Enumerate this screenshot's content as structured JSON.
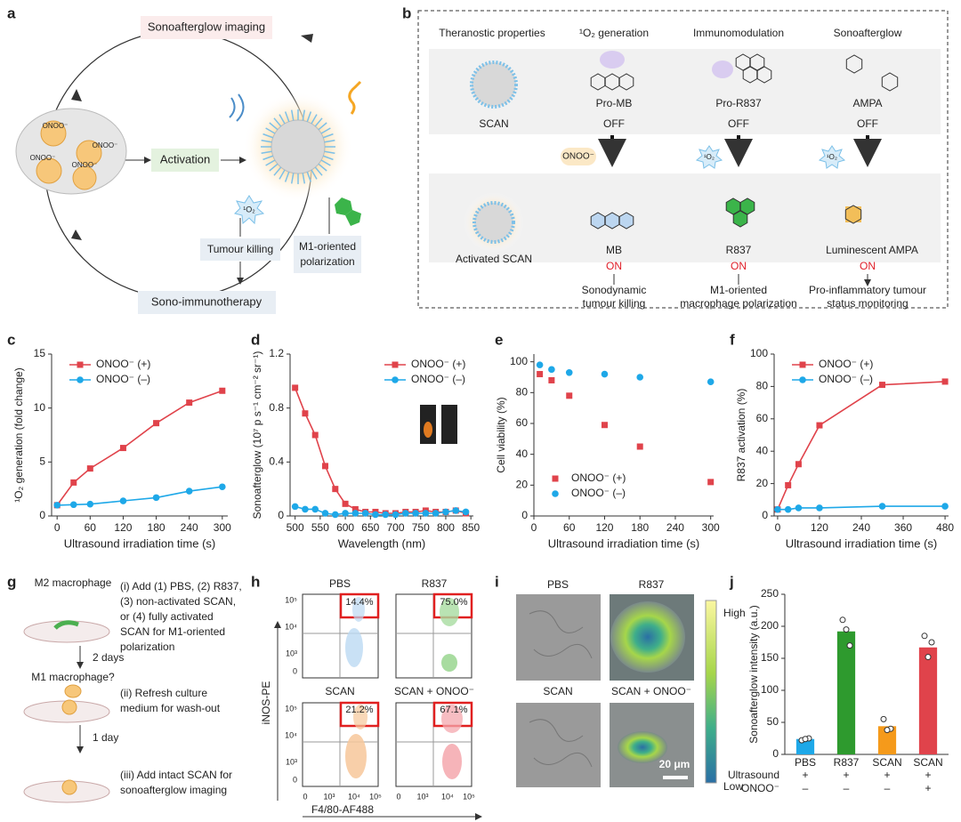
{
  "panel_a": {
    "label": "a",
    "imaging": "Sonoafterglow imaging",
    "activation": "Activation",
    "killing": "Tumour killing",
    "polarization": [
      "M1-oriented",
      "polarization"
    ],
    "therapy": "Sono-immunotherapy",
    "onoo": "ONOO⁻",
    "singlet_oxygen": "¹O₂"
  },
  "panel_b": {
    "label": "b",
    "columns": [
      "Theranostic properties",
      "¹O₂ generation",
      "Immunomodulation",
      "Sonoafterglow"
    ],
    "before": {
      "names": [
        "SCAN",
        "Pro-MB",
        "Pro-R837",
        "AMPA"
      ],
      "states": [
        "OFF",
        "OFF",
        "OFF"
      ]
    },
    "triggers": [
      "ONOO⁻",
      "¹O₂",
      "¹O₂"
    ],
    "after": {
      "names": [
        "Activated SCAN",
        "MB",
        "R837",
        "Luminescent AMPA"
      ],
      "states": [
        "ON",
        "ON",
        "ON"
      ]
    },
    "outcomes": [
      [
        "Sonodynamic",
        "tumour killing"
      ],
      [
        "M1-oriented",
        "macrophage polarization"
      ],
      [
        "Pro-inflammatory tumour",
        "status monitoring"
      ]
    ]
  },
  "panel_g": {
    "label": "g",
    "stages": [
      "M2 macrophage",
      "M1 macrophage?"
    ],
    "intervals": [
      "2 days",
      "1 day"
    ],
    "steps": [
      [
        "(i) Add (1) PBS, (2) R837,",
        "(3) non-activated SCAN,",
        "or (4) fully activated",
        "SCAN for M1-oriented",
        "polarization"
      ],
      [
        "(ii) Refresh culture",
        "medium for wash-out"
      ],
      [
        "(iii) Add intact SCAN for",
        "sonoafterglow imaging"
      ]
    ]
  },
  "panel_h": {
    "label": "h",
    "y_label": "iNOS-PE",
    "x_label": "F4/80-AF488",
    "y_ticks": [
      "10⁵",
      "10⁴",
      "10³",
      "0"
    ],
    "x_ticks": [
      "0",
      "10³",
      "10⁴",
      "10⁵"
    ],
    "plots": [
      {
        "title": "PBS",
        "percent": "14.4%"
      },
      {
        "title": "R837",
        "percent": "75.0%"
      },
      {
        "title": "SCAN",
        "percent": "21.2%"
      },
      {
        "title": "SCAN + ONOO⁻",
        "percent": "67.1%"
      }
    ]
  },
  "panel_i": {
    "label": "i",
    "images": [
      "PBS",
      "R837",
      "SCAN",
      "SCAN + ONOO⁻"
    ],
    "colorbar": [
      "High",
      "Low"
    ],
    "scale_bar": "20 μm"
  },
  "chart_data": [
    {
      "label": "c",
      "type": "line",
      "y_label": "¹O₂ generation (fold change)",
      "x_label": "Ultrasound irradiation time (s)",
      "legend": "upper left",
      "x": [
        0,
        30,
        60,
        120,
        180,
        240,
        300
      ],
      "xlim": [
        -10,
        310
      ],
      "xticks": [
        0,
        60,
        120,
        180,
        240,
        300
      ],
      "ylim": [
        0,
        15
      ],
      "yticks": [
        0,
        5,
        10,
        15
      ],
      "series": [
        {
          "name": "ONOO⁻ (+)",
          "color": "#e0434b",
          "marker": "square",
          "values": [
            1,
            3.1,
            4.4,
            6.3,
            8.6,
            10.5,
            11.6
          ]
        },
        {
          "name": "ONOO⁻ (–)",
          "color": "#1ea8e8",
          "marker": "circle",
          "values": [
            1,
            1.05,
            1.1,
            1.4,
            1.7,
            2.3,
            2.7
          ]
        }
      ]
    },
    {
      "label": "d",
      "type": "line",
      "y_label": "Sonoafterglow (10⁷ p s⁻¹ cm⁻² sr⁻¹)",
      "x_label": "Wavelength (nm)",
      "legend": "upper right",
      "x": [
        500,
        520,
        540,
        560,
        580,
        600,
        620,
        640,
        660,
        680,
        700,
        720,
        740,
        760,
        780,
        800,
        820,
        840
      ],
      "xlim": [
        490,
        855
      ],
      "xticks": [
        500,
        550,
        600,
        650,
        700,
        750,
        800,
        850
      ],
      "ylim": [
        0,
        1.2
      ],
      "yticks": [
        0,
        0.4,
        0.8,
        1.2
      ],
      "series": [
        {
          "name": "ONOO⁻ (+)",
          "color": "#e0434b",
          "marker": "square",
          "values": [
            0.95,
            0.76,
            0.6,
            0.37,
            0.2,
            0.09,
            0.05,
            0.03,
            0.03,
            0.02,
            0.02,
            0.03,
            0.03,
            0.04,
            0.03,
            0.03,
            0.04,
            0.02
          ]
        },
        {
          "name": "ONOO⁻ (–)",
          "color": "#1ea8e8",
          "marker": "circle",
          "values": [
            0.07,
            0.05,
            0.05,
            0.02,
            0.01,
            0.02,
            0.02,
            0.02,
            0.01,
            0.01,
            0.01,
            0.02,
            0.02,
            0.02,
            0.02,
            0.03,
            0.04,
            0.03
          ]
        }
      ]
    },
    {
      "label": "e",
      "type": "scatter",
      "y_label": "Cell viability (%)",
      "x_label": "Ultrasound irradiation time (s)",
      "legend": "lower left",
      "x": [
        10,
        30,
        60,
        120,
        180,
        300
      ],
      "xlim": [
        0,
        305
      ],
      "xticks": [
        0,
        60,
        120,
        180,
        240,
        300
      ],
      "ylim": [
        0,
        105
      ],
      "yticks": [
        0,
        20,
        40,
        60,
        80,
        100
      ],
      "series": [
        {
          "name": "ONOO⁻ (+)",
          "color": "#e0434b",
          "marker": "square",
          "values": [
            92,
            88,
            78,
            59,
            45,
            22
          ]
        },
        {
          "name": "ONOO⁻ (–)",
          "color": "#1ea8e8",
          "marker": "circle",
          "values": [
            98,
            95,
            93,
            92,
            90,
            87
          ]
        }
      ]
    },
    {
      "label": "f",
      "type": "line",
      "y_label": "R837 activation (%)",
      "x_label": "Ultrasound irradiation time (s)",
      "legend": "upper left",
      "x": [
        0,
        30,
        60,
        120,
        300,
        480
      ],
      "xlim": [
        -10,
        490
      ],
      "xticks": [
        0,
        120,
        240,
        360,
        480
      ],
      "ylim": [
        0,
        100
      ],
      "yticks": [
        0,
        20,
        40,
        60,
        80,
        100
      ],
      "series": [
        {
          "name": "ONOO⁻ (+)",
          "color": "#e0434b",
          "marker": "square",
          "values": [
            4,
            19,
            32,
            56,
            81,
            83
          ]
        },
        {
          "name": "ONOO⁻ (–)",
          "color": "#1ea8e8",
          "marker": "circle",
          "values": [
            4,
            4,
            5,
            5,
            6,
            6
          ]
        }
      ]
    },
    {
      "label": "j",
      "type": "bar",
      "y_label": "Sonoafterglow intensity (a.u.)",
      "categories": [
        "PBS",
        "R837",
        "SCAN",
        "SCAN"
      ],
      "values": [
        24,
        192,
        44,
        167
      ],
      "colors": [
        "#1ea8e8",
        "#2e9a2e",
        "#f59a1b",
        "#e0434b"
      ],
      "points": [
        [
          22,
          25,
          24
        ],
        [
          210,
          170,
          195
        ],
        [
          55,
          40,
          38
        ],
        [
          185,
          175,
          152
        ]
      ],
      "ylim": [
        0,
        250
      ],
      "yticks": [
        0,
        50,
        100,
        150,
        200,
        250
      ],
      "table": [
        {
          "name": "Ultrasound",
          "cells": [
            "+",
            "+",
            "+",
            "+"
          ]
        },
        {
          "name": "ONOO⁻",
          "cells": [
            "–",
            "–",
            "–",
            "+"
          ]
        }
      ]
    }
  ]
}
